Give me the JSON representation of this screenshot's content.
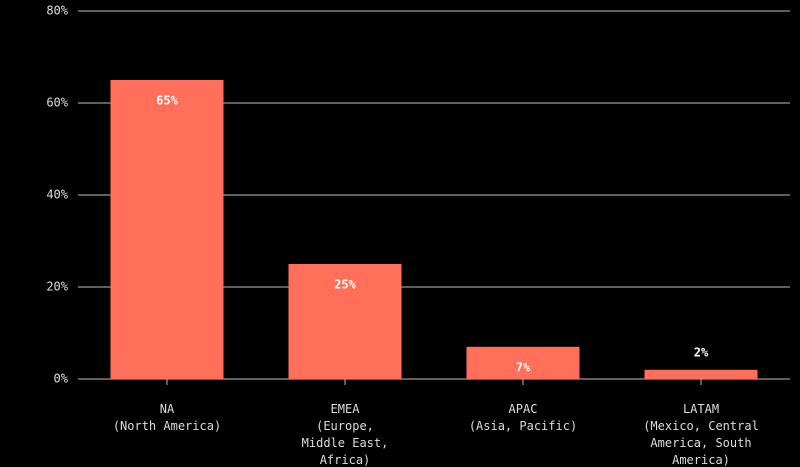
{
  "chart_data": {
    "type": "bar",
    "categories": [
      "NA\n(North America)",
      "EMEA\n(Europe,\nMiddle East,\nAfrica)",
      "APAC\n(Asia, Pacific)",
      "LATAM\n(Mexico, Central\nAmerica, South\nAmerica)"
    ],
    "values": [
      65,
      25,
      7,
      2
    ],
    "value_labels": [
      "65%",
      "25%",
      "7%",
      "2%"
    ],
    "color": "#ff6f59",
    "ylim": [
      0,
      80
    ],
    "yticks": [
      {
        "value": 0,
        "label": "0%"
      },
      {
        "value": 20,
        "label": "20%"
      },
      {
        "value": 40,
        "label": "40%"
      },
      {
        "value": 60,
        "label": "60%"
      },
      {
        "value": 80,
        "label": "80%"
      }
    ],
    "grid": true
  }
}
